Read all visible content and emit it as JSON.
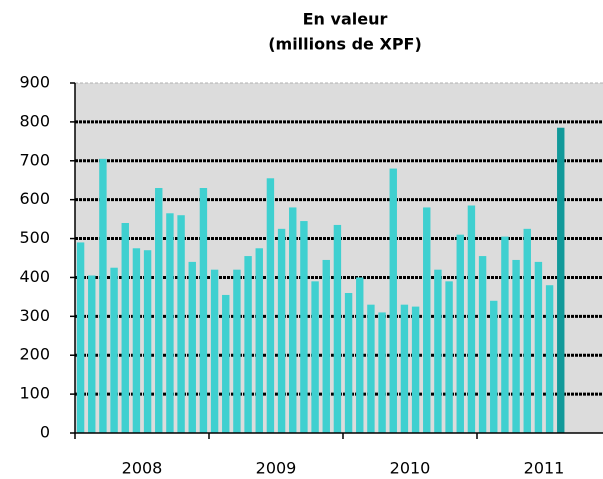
{
  "chart_data": {
    "type": "bar",
    "title": "En valeur",
    "subtitle": "(millions de XPF)",
    "categories": [
      null,
      null,
      null,
      null,
      null,
      null,
      null,
      null,
      null,
      null,
      null,
      null,
      null,
      null,
      null,
      null,
      null,
      null,
      null,
      null,
      null,
      null,
      null,
      null,
      null,
      null,
      null,
      null,
      null,
      null,
      null,
      null,
      null,
      null,
      null,
      null,
      null,
      null,
      null,
      null,
      null,
      null,
      null,
      null
    ],
    "year_labels": [
      "2008",
      "2009",
      "2010",
      "2011"
    ],
    "values": [
      490,
      405,
      705,
      425,
      540,
      475,
      470,
      630,
      565,
      560,
      440,
      630,
      420,
      355,
      420,
      455,
      475,
      655,
      525,
      580,
      545,
      390,
      445,
      535,
      360,
      400,
      330,
      310,
      680,
      330,
      325,
      580,
      420,
      390,
      510,
      585,
      455,
      340,
      505,
      445,
      525,
      440,
      380,
      785
    ],
    "colors": [
      "#3fd0d0",
      "#3fd0d0",
      "#3fd0d0",
      "#3fd0d0",
      "#3fd0d0",
      "#3fd0d0",
      "#3fd0d0",
      "#3fd0d0",
      "#3fd0d0",
      "#3fd0d0",
      "#3fd0d0",
      "#3fd0d0",
      "#3fd0d0",
      "#3fd0d0",
      "#3fd0d0",
      "#3fd0d0",
      "#3fd0d0",
      "#3fd0d0",
      "#3fd0d0",
      "#3fd0d0",
      "#3fd0d0",
      "#3fd0d0",
      "#3fd0d0",
      "#3fd0d0",
      "#3fd0d0",
      "#3fd0d0",
      "#3fd0d0",
      "#3fd0d0",
      "#3fd0d0",
      "#3fd0d0",
      "#3fd0d0",
      "#3fd0d0",
      "#3fd0d0",
      "#3fd0d0",
      "#3fd0d0",
      "#3fd0d0",
      "#3fd0d0",
      "#3fd0d0",
      "#3fd0d0",
      "#3fd0d0",
      "#3fd0d0",
      "#3fd0d0",
      "#3fd0d0",
      "#12999a"
    ],
    "ylim": [
      0,
      900
    ],
    "yticks": [
      0,
      100,
      200,
      300,
      400,
      500,
      600,
      700,
      800,
      900
    ],
    "grid": true
  }
}
